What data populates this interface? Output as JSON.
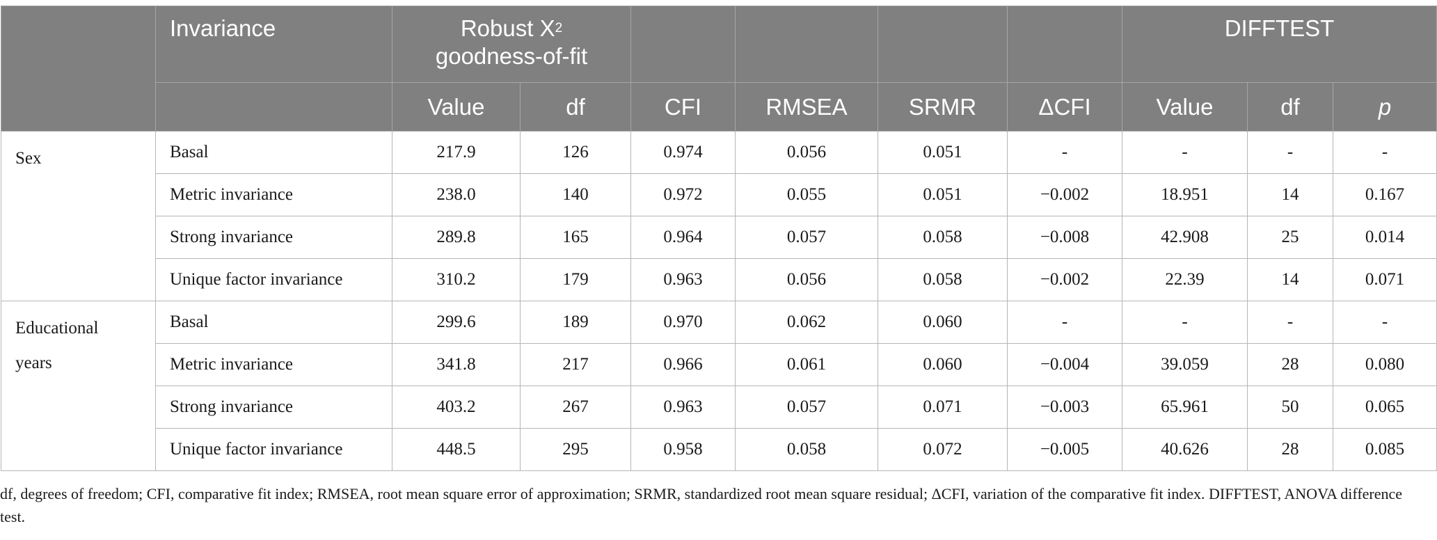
{
  "table": {
    "header": {
      "invariance": "Invariance",
      "robust_line1": "Robust X",
      "robust_sup": "2",
      "robust_line2": "goodness-of-fit",
      "difftest": "DIFFTEST",
      "columns": [
        "Value",
        "df",
        "CFI",
        "RMSEA",
        "SRMR",
        "ΔCFI",
        "Value",
        "df",
        "p"
      ]
    },
    "groups": [
      {
        "name": "Sex",
        "rows": [
          {
            "model": "Basal",
            "value": "217.9",
            "df": "126",
            "cfi": "0.974",
            "rmsea": "0.056",
            "srmr": "0.051",
            "dcfi": "-",
            "dt_value": "-",
            "dt_df": "-",
            "dt_p": "-"
          },
          {
            "model": "Metric invariance",
            "value": "238.0",
            "df": "140",
            "cfi": "0.972",
            "rmsea": "0.055",
            "srmr": "0.051",
            "dcfi": "−0.002",
            "dt_value": "18.951",
            "dt_df": "14",
            "dt_p": "0.167"
          },
          {
            "model": "Strong invariance",
            "value": "289.8",
            "df": "165",
            "cfi": "0.964",
            "rmsea": "0.057",
            "srmr": "0.058",
            "dcfi": "−0.008",
            "dt_value": "42.908",
            "dt_df": "25",
            "dt_p": "0.014"
          },
          {
            "model": "Unique factor invariance",
            "value": "310.2",
            "df": "179",
            "cfi": "0.963",
            "rmsea": "0.056",
            "srmr": "0.058",
            "dcfi": "−0.002",
            "dt_value": "22.39",
            "dt_df": "14",
            "dt_p": "0.071"
          }
        ]
      },
      {
        "name_line1": "Educational",
        "name_line2": "years",
        "rows": [
          {
            "model": "Basal",
            "value": "299.6",
            "df": "189",
            "cfi": "0.970",
            "rmsea": "0.062",
            "srmr": "0.060",
            "dcfi": "-",
            "dt_value": "-",
            "dt_df": "-",
            "dt_p": "-"
          },
          {
            "model": "Metric invariance",
            "value": "341.8",
            "df": "217",
            "cfi": "0.966",
            "rmsea": "0.061",
            "srmr": "0.060",
            "dcfi": "−0.004",
            "dt_value": "39.059",
            "dt_df": "28",
            "dt_p": "0.080"
          },
          {
            "model": "Strong invariance",
            "value": "403.2",
            "df": "267",
            "cfi": "0.963",
            "rmsea": "0.057",
            "srmr": "0.071",
            "dcfi": "−0.003",
            "dt_value": "65.961",
            "dt_df": "50",
            "dt_p": "0.065"
          },
          {
            "model": "Unique factor invariance",
            "value": "448.5",
            "df": "295",
            "cfi": "0.958",
            "rmsea": "0.058",
            "srmr": "0.072",
            "dcfi": "−0.005",
            "dt_value": "40.626",
            "dt_df": "28",
            "dt_p": "0.085"
          }
        ]
      }
    ]
  },
  "footnote": "df, degrees of freedom; CFI, comparative fit index; RMSEA, root mean square error of approximation; SRMR, standardized root mean square residual; ΔCFI, variation of the comparative fit index. DIFFTEST, ANOVA difference test."
}
